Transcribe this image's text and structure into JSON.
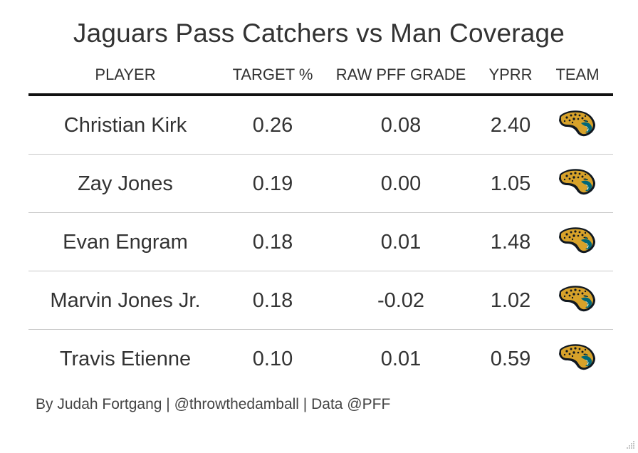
{
  "chart_data": {
    "type": "table",
    "title": "Jaguars Pass Catchers vs Man Coverage",
    "columns": [
      "PLAYER",
      "TARGET %",
      "RAW PFF GRADE",
      "YPRR",
      "TEAM"
    ],
    "rows": [
      {
        "player": "Christian Kirk",
        "target_pct": "0.26",
        "raw_pff_grade": "0.08",
        "yprr": "2.40",
        "team_icon": "jaguars-logo-icon"
      },
      {
        "player": "Zay Jones",
        "target_pct": "0.19",
        "raw_pff_grade": "0.00",
        "yprr": "1.05",
        "team_icon": "jaguars-logo-icon"
      },
      {
        "player": "Evan Engram",
        "target_pct": "0.18",
        "raw_pff_grade": "0.01",
        "yprr": "1.48",
        "team_icon": "jaguars-logo-icon"
      },
      {
        "player": "Marvin Jones Jr.",
        "target_pct": "0.18",
        "raw_pff_grade": "-0.02",
        "yprr": "1.02",
        "team_icon": "jaguars-logo-icon"
      },
      {
        "player": "Travis Etienne",
        "target_pct": "0.10",
        "raw_pff_grade": "0.01",
        "yprr": "0.59",
        "team_icon": "jaguars-logo-icon"
      }
    ],
    "footer": "By Judah Fortgang | @throwthedamball | Data @PFF"
  },
  "colors": {
    "text": "#333333",
    "header_rule": "#111111",
    "row_rule": "#c8c8c8",
    "logo_gold": "#D7A22A",
    "logo_teal": "#006778",
    "logo_black": "#101820"
  }
}
